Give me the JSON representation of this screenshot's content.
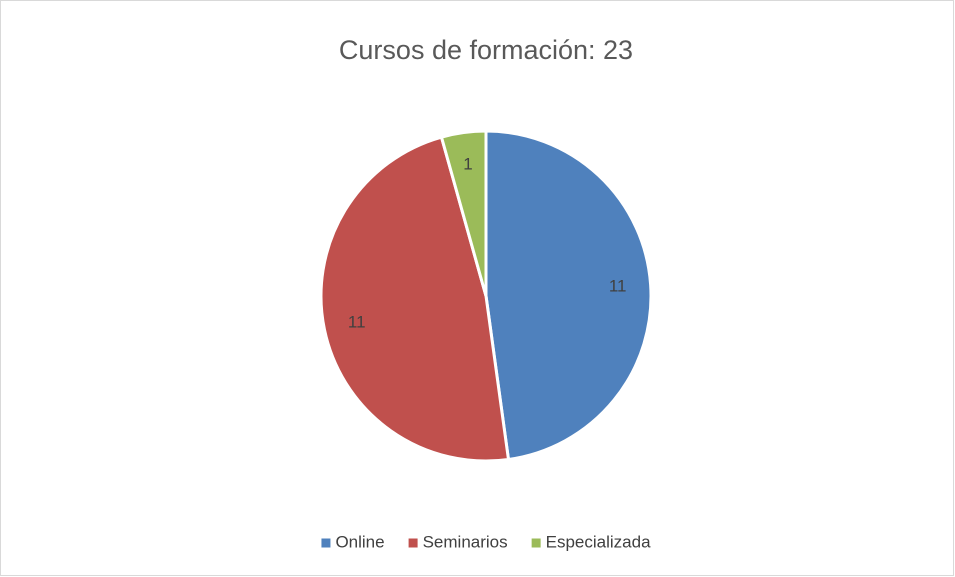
{
  "chart_data": {
    "type": "pie",
    "title": "Cursos de formación: 23",
    "categories": [
      "Online",
      "Seminarios",
      "Especializada"
    ],
    "values": [
      11,
      11,
      1
    ],
    "colors": [
      "#4f81bd",
      "#c0504d",
      "#9bbb59"
    ],
    "legend": "bottom"
  }
}
